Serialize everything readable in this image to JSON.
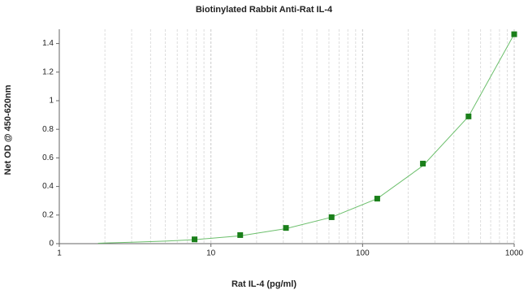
{
  "chart_data": {
    "type": "scatter",
    "title": "Biotinylated Rabbit Anti-Rat IL-4",
    "x_label": "Rat IL-4 (pg/ml)",
    "y_label": "Net OD @ 450-620nm",
    "x": [
      7.8,
      15.6,
      31.25,
      62.5,
      125,
      250,
      500,
      1000
    ],
    "values": [
      0.03,
      0.06,
      0.11,
      0.185,
      0.315,
      0.56,
      0.89,
      1.465
    ],
    "color": "#1a7f1a",
    "fit": {
      "x": [
        1.8,
        3,
        5,
        7.8,
        15.6,
        31.25,
        62.5,
        125,
        250,
        500,
        1000
      ],
      "values": [
        0.003,
        0.01,
        0.018,
        0.028,
        0.055,
        0.105,
        0.185,
        0.315,
        0.545,
        0.89,
        1.465
      ],
      "color": "#6cbf6c"
    },
    "xscale": "log",
    "xlim": [
      1,
      1000
    ],
    "xticks": [
      1,
      10,
      100,
      1000
    ],
    "ylim": [
      0,
      1.5
    ],
    "yticks": [
      0,
      0.2,
      0.4,
      0.6,
      0.8,
      1,
      1.2,
      1.4
    ],
    "grid": true
  }
}
